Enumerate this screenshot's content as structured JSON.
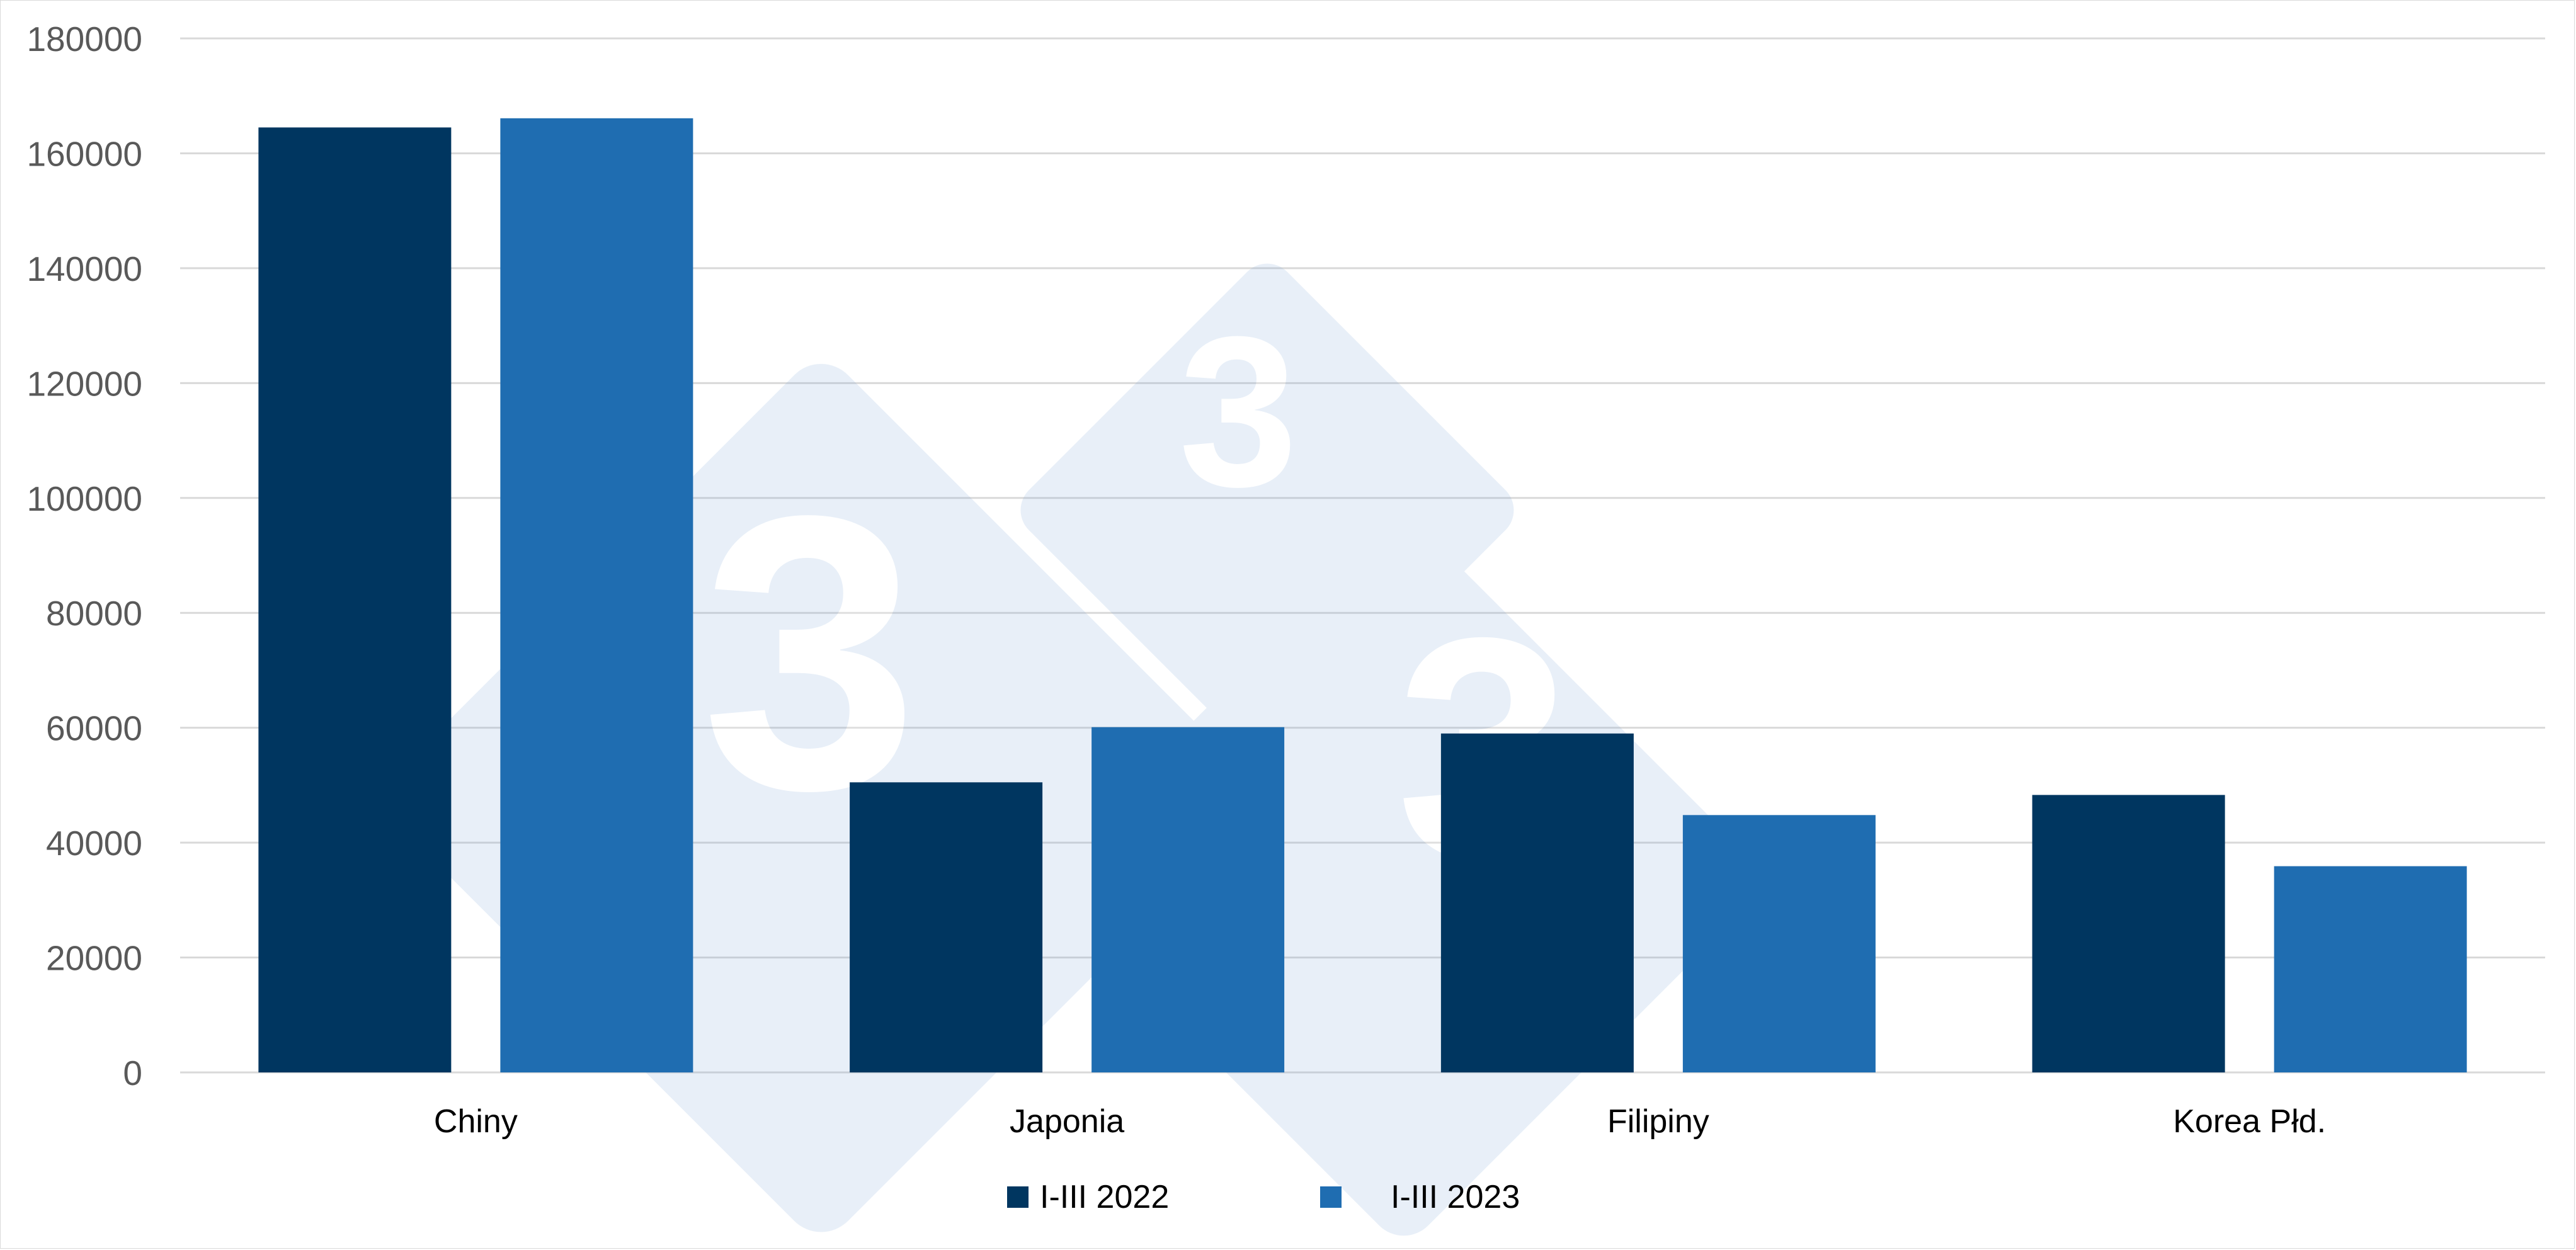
{
  "chart_data": {
    "type": "bar",
    "title": "",
    "xlabel": "",
    "ylabel": "",
    "categories": [
      "Chiny",
      "Japonia",
      "Filipiny",
      "Korea Płd."
    ],
    "series": [
      {
        "name": "I-III 2022",
        "values": [
          164500,
          50500,
          59000,
          48300
        ],
        "color": "#003660"
      },
      {
        "name": "I-III 2023",
        "values": [
          166100,
          60100,
          44800,
          35900
        ],
        "color": "#1f6db1"
      }
    ],
    "ylim": [
      0,
      180000
    ],
    "yticks": [
      0,
      20000,
      40000,
      60000,
      80000,
      100000,
      120000,
      140000,
      160000,
      180000
    ],
    "grid": true,
    "legend": "bottom-center",
    "watermark": "3tres3-logo"
  }
}
